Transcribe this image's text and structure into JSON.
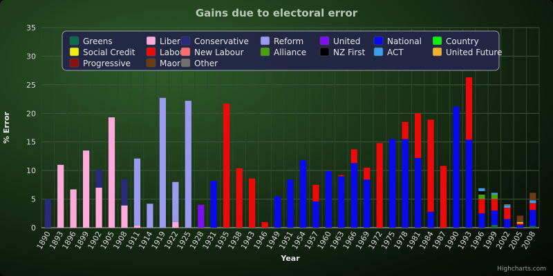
{
  "credits": "Highcharts.com",
  "chart_data": {
    "type": "bar",
    "stacked": true,
    "title": "Gains due to electoral error",
    "xlabel": "Year",
    "ylabel": "% Error",
    "ylim": [
      0,
      35
    ],
    "yticks": [
      0,
      5,
      10,
      15,
      20,
      25,
      30,
      35
    ],
    "grid": true,
    "legend_position": "top",
    "categories": [
      "1890",
      "1893",
      "1896",
      "1899",
      "1902",
      "1905",
      "1908",
      "1911",
      "1914",
      "1919",
      "1922",
      "1925",
      "1928",
      "1931",
      "1935",
      "1938",
      "1943",
      "1946",
      "1949",
      "1951",
      "1954",
      "1957",
      "1960",
      "1963",
      "1966",
      "1969",
      "1972",
      "1975",
      "1978",
      "1981",
      "1984",
      "1987",
      "1990",
      "1993",
      "1996",
      "1999",
      "2002",
      "2005",
      "2008"
    ],
    "series": [
      {
        "name": "Greens",
        "color": "#0c6b4a",
        "values": [
          0,
          0,
          0,
          0,
          0,
          0,
          0,
          0,
          0,
          0,
          0,
          0,
          0,
          0,
          0,
          0,
          0,
          0,
          0,
          0,
          0,
          0,
          0,
          0,
          0,
          0,
          0,
          0,
          0,
          0,
          0,
          0,
          0,
          0,
          0,
          0.5,
          0,
          0,
          0.3
        ]
      },
      {
        "name": "Liberal",
        "color": "#ffaadd",
        "values": [
          0,
          11,
          6.7,
          13.5,
          7,
          19.3,
          3.9,
          0.4,
          0,
          0,
          1,
          0,
          0,
          0,
          0,
          0,
          0,
          0,
          0,
          0,
          0,
          0,
          0,
          0,
          0,
          0,
          0,
          0,
          0,
          0,
          0,
          0,
          0,
          0,
          0,
          0,
          0,
          0,
          0
        ]
      },
      {
        "name": "Conservative",
        "color": "#2a2a7a",
        "values": [
          5,
          0,
          0,
          0,
          3.2,
          0,
          4.6,
          0,
          0,
          0,
          0,
          0,
          0,
          0,
          0,
          0,
          0,
          0,
          0,
          0,
          0,
          0,
          0,
          0,
          0,
          0,
          0,
          0,
          0,
          0,
          0,
          0,
          0,
          0,
          0,
          0,
          0,
          0,
          0
        ]
      },
      {
        "name": "Reform",
        "color": "#9a9aee",
        "values": [
          0,
          0,
          0,
          0,
          0,
          0,
          0,
          11.7,
          4.2,
          22.7,
          7,
          22.2,
          0,
          0,
          0,
          0,
          0,
          0,
          0,
          0,
          0,
          0,
          0,
          0,
          0,
          0,
          0,
          0,
          0,
          0,
          0,
          0,
          0,
          0,
          0,
          0,
          0,
          0,
          0
        ]
      },
      {
        "name": "United",
        "color": "#7a10ee",
        "values": [
          0,
          0,
          0,
          0,
          0,
          0,
          0,
          0,
          0,
          0,
          0,
          0,
          4,
          0,
          0,
          0,
          0,
          0,
          0,
          0,
          0,
          0,
          0,
          0,
          0,
          0,
          0,
          0,
          0,
          0,
          0,
          0,
          0,
          0,
          0,
          0,
          0,
          0,
          0
        ]
      },
      {
        "name": "National",
        "color": "#0a0aee",
        "values": [
          0,
          0,
          0,
          0,
          0,
          0,
          0,
          0,
          0,
          0,
          0,
          0,
          0,
          8.2,
          0,
          0,
          0,
          0,
          5.5,
          8.4,
          11.8,
          4.6,
          9.9,
          9,
          11.3,
          8.4,
          0,
          15.5,
          15.5,
          12.2,
          2.8,
          0,
          21.2,
          15.4,
          2.5,
          2.5,
          1.5,
          0.5,
          2.8
        ]
      },
      {
        "name": "Country",
        "color": "#10ee10",
        "values": [
          0,
          0,
          0,
          0,
          0,
          0,
          0,
          0,
          0,
          0,
          0,
          0,
          0,
          0,
          0,
          0,
          0,
          0,
          0,
          0,
          0,
          0,
          0,
          0,
          0,
          0,
          0,
          0,
          0,
          0,
          0,
          0,
          0,
          0,
          0,
          0,
          0,
          0,
          0
        ]
      },
      {
        "name": "Social Credit",
        "color": "#eeee10",
        "values": [
          0,
          0,
          0,
          0,
          0,
          0,
          0,
          0,
          0,
          0,
          0,
          0,
          0,
          0,
          0,
          0,
          0,
          0,
          0,
          0,
          0,
          0,
          0,
          0,
          0,
          0,
          0,
          0,
          0,
          0,
          0,
          0,
          0,
          0,
          0,
          0,
          0,
          0,
          0
        ]
      },
      {
        "name": "Labour",
        "color": "#ee0a0a",
        "values": [
          0,
          0,
          0,
          0,
          0,
          0,
          0,
          0,
          0,
          0,
          0,
          0,
          0,
          0,
          21.7,
          10.4,
          8.6,
          1,
          0,
          0,
          0,
          2.9,
          0,
          0.2,
          2.4,
          2.1,
          14.8,
          0,
          3,
          7.8,
          16.1,
          10.8,
          0,
          10.9,
          2.5,
          2,
          2,
          0.2,
          1.2
        ]
      },
      {
        "name": "New Labour",
        "color": "#ff6f6f",
        "values": [
          0,
          0,
          0,
          0,
          0,
          0,
          0,
          0,
          0,
          0,
          0,
          0,
          0,
          0,
          0,
          0,
          0,
          0,
          0,
          0,
          0,
          0,
          0,
          0,
          0,
          0,
          0,
          0,
          0,
          0,
          0,
          0,
          0,
          0,
          0,
          0,
          0,
          0,
          0
        ]
      },
      {
        "name": "Alliance",
        "color": "#4aa010",
        "values": [
          0,
          0,
          0,
          0,
          0,
          0,
          0,
          0,
          0,
          0,
          0,
          0,
          0,
          0,
          0,
          0,
          0,
          0,
          0,
          0,
          0,
          0,
          0,
          0,
          0,
          0,
          0,
          0,
          0,
          0,
          0,
          0,
          0,
          0,
          0.8,
          0.8,
          0,
          0,
          0
        ]
      },
      {
        "name": "NZ First",
        "color": "#000000",
        "values": [
          0,
          0,
          0,
          0,
          0,
          0,
          0,
          0,
          0,
          0,
          0,
          0,
          0,
          0,
          0,
          0,
          0,
          0,
          0,
          0,
          0,
          0,
          0,
          0,
          0,
          0,
          0,
          0,
          0,
          0,
          0,
          0,
          0,
          0,
          0.6,
          0,
          0,
          0,
          0
        ]
      },
      {
        "name": "ACT",
        "color": "#3aa0ee",
        "values": [
          0,
          0,
          0,
          0,
          0,
          0,
          0,
          0,
          0,
          0,
          0,
          0,
          0,
          0,
          0,
          0,
          0,
          0,
          0,
          0,
          0,
          0,
          0,
          0,
          0,
          0,
          0,
          0,
          0,
          0,
          0,
          0,
          0,
          0,
          0.5,
          0.3,
          0.4,
          0,
          0.5
        ]
      },
      {
        "name": "United Future",
        "color": "#eeb030",
        "values": [
          0,
          0,
          0,
          0,
          0,
          0,
          0,
          0,
          0,
          0,
          0,
          0,
          0,
          0,
          0,
          0,
          0,
          0,
          0,
          0,
          0,
          0,
          0,
          0,
          0,
          0,
          0,
          0,
          0,
          0,
          0,
          0,
          0,
          0,
          0,
          0,
          0,
          0.3,
          0
        ]
      },
      {
        "name": "Progressive",
        "color": "#8a1010",
        "values": [
          0,
          0,
          0,
          0,
          0,
          0,
          0,
          0,
          0,
          0,
          0,
          0,
          0,
          0,
          0,
          0,
          0,
          0,
          0,
          0,
          0,
          0,
          0,
          0,
          0,
          0,
          0,
          0,
          0,
          0,
          0,
          0,
          0,
          0,
          0,
          0,
          0,
          0,
          0
        ]
      },
      {
        "name": "Maori",
        "color": "#6a3a10",
        "values": [
          0,
          0,
          0,
          0,
          0,
          0,
          0,
          0,
          0,
          0,
          0,
          0,
          0,
          0,
          0,
          0,
          0,
          0,
          0,
          0,
          0,
          0,
          0,
          0,
          0,
          0,
          0,
          0,
          0,
          0,
          0,
          0,
          0,
          0,
          0,
          0,
          0,
          1.1,
          1.3
        ]
      },
      {
        "name": "Other",
        "color": "#707070",
        "values": [
          0,
          0,
          0,
          0,
          0,
          0,
          0,
          0,
          0,
          0,
          0,
          0,
          0,
          0,
          0,
          0,
          0,
          0,
          0,
          0,
          0,
          0,
          0,
          0,
          0,
          0,
          0,
          0,
          0,
          0,
          0,
          0,
          0,
          0,
          0,
          0,
          0.2,
          0,
          0
        ]
      }
    ]
  }
}
